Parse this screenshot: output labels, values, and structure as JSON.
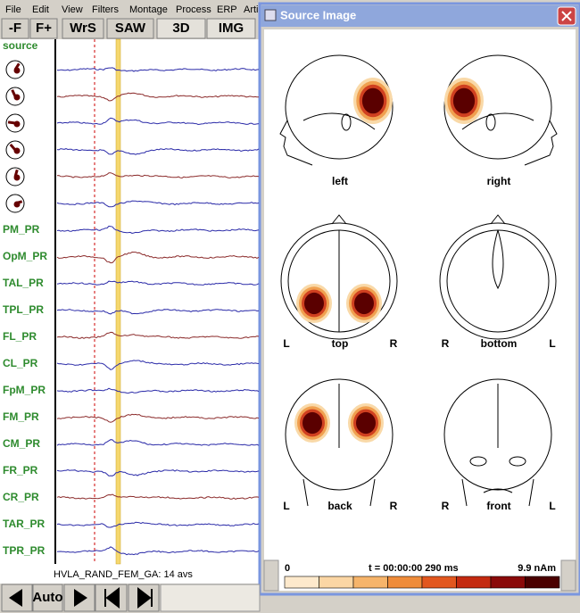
{
  "menu": [
    "File",
    "Edit",
    "View",
    "Filters",
    "Montage",
    "Process",
    "ERP",
    "Arti"
  ],
  "toolbar": [
    "-F",
    "F+",
    "WrS",
    "SAW",
    "3D",
    "IMG"
  ],
  "channels": [
    "source",
    "PM_PR",
    "OpM_PR",
    "TAL_PR",
    "TPL_PR",
    "FL_PR",
    "CL_PR",
    "FpM_PR",
    "FM_PR",
    "CM_PR",
    "FR_PR",
    "CR_PR",
    "TAR_PR",
    "TPR_PR"
  ],
  "status": "HVLA_RAND_FEM_GA: 14 avs",
  "controls": {
    "auto": "Auto"
  },
  "window": {
    "title": "Source Image",
    "views": [
      {
        "label": "left"
      },
      {
        "label": "right"
      },
      {
        "label": "top",
        "side_left": "L",
        "side_right": "R"
      },
      {
        "label": "bottom",
        "side_left": "R",
        "side_right": "L"
      },
      {
        "label": "back",
        "side_left": "L",
        "side_right": "R"
      },
      {
        "label": "front",
        "side_left": "R",
        "side_right": "L"
      }
    ]
  },
  "colorbar": {
    "min": "0",
    "time": "t = 00:00:00  290 ms",
    "max": "9.9 nAm"
  }
}
